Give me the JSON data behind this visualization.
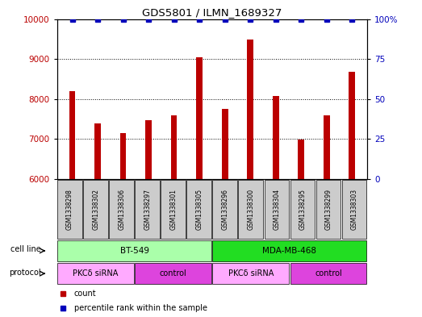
{
  "title": "GDS5801 / ILMN_1689327",
  "samples": [
    "GSM1338298",
    "GSM1338302",
    "GSM1338306",
    "GSM1338297",
    "GSM1338301",
    "GSM1338305",
    "GSM1338296",
    "GSM1338300",
    "GSM1338304",
    "GSM1338295",
    "GSM1338299",
    "GSM1338303"
  ],
  "counts": [
    8200,
    7400,
    7150,
    7480,
    7600,
    9050,
    7750,
    9480,
    8080,
    6980,
    7600,
    8680
  ],
  "percentiles": [
    100,
    100,
    100,
    100,
    100,
    100,
    100,
    100,
    100,
    100,
    100,
    100
  ],
  "ylim_left": [
    6000,
    10000
  ],
  "ylim_right": [
    0,
    100
  ],
  "yticks_left": [
    6000,
    7000,
    8000,
    9000,
    10000
  ],
  "yticks_right": [
    0,
    25,
    50,
    75,
    100
  ],
  "bar_color": "#bb0000",
  "dot_color": "#0000bb",
  "cell_line_data": [
    {
      "label": "BT-549",
      "start": 0,
      "end": 6,
      "color": "#aaffaa"
    },
    {
      "label": "MDA-MB-468",
      "start": 6,
      "end": 12,
      "color": "#22dd22"
    }
  ],
  "protocol_data": [
    {
      "label": "PKCδ siRNA",
      "start": 0,
      "end": 3,
      "color": "#ffaaff"
    },
    {
      "label": "control",
      "start": 3,
      "end": 6,
      "color": "#dd44dd"
    },
    {
      "label": "PKCδ siRNA",
      "start": 6,
      "end": 9,
      "color": "#ffaaff"
    },
    {
      "label": "control",
      "start": 9,
      "end": 12,
      "color": "#dd44dd"
    }
  ],
  "background_color": "#ffffff",
  "sample_box_color": "#cccccc",
  "legend_count_color": "#bb0000",
  "legend_percentile_color": "#0000bb"
}
